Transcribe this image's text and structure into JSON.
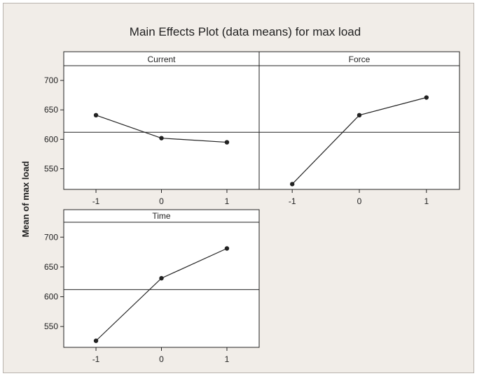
{
  "chart_data": {
    "type": "line",
    "title": "Main Effects Plot (data means) for max load",
    "ylabel": "Mean of max load",
    "xlabel": "",
    "ylim": [
      515,
      725
    ],
    "yticks": [
      550,
      600,
      650,
      700
    ],
    "reference_line": 612,
    "grid": false,
    "colors": {
      "line": "#222222",
      "background": "#f1ede8",
      "panel": "#ffffff"
    },
    "panels": [
      {
        "name": "Current",
        "x": [
          "-1",
          "0",
          "1"
        ],
        "values": [
          641,
          602,
          595
        ]
      },
      {
        "name": "Force",
        "x": [
          "-1",
          "0",
          "1"
        ],
        "values": [
          524,
          641,
          671
        ]
      },
      {
        "name": "Time",
        "x": [
          "-1",
          "0",
          "1"
        ],
        "values": [
          526,
          631,
          681
        ]
      }
    ]
  }
}
